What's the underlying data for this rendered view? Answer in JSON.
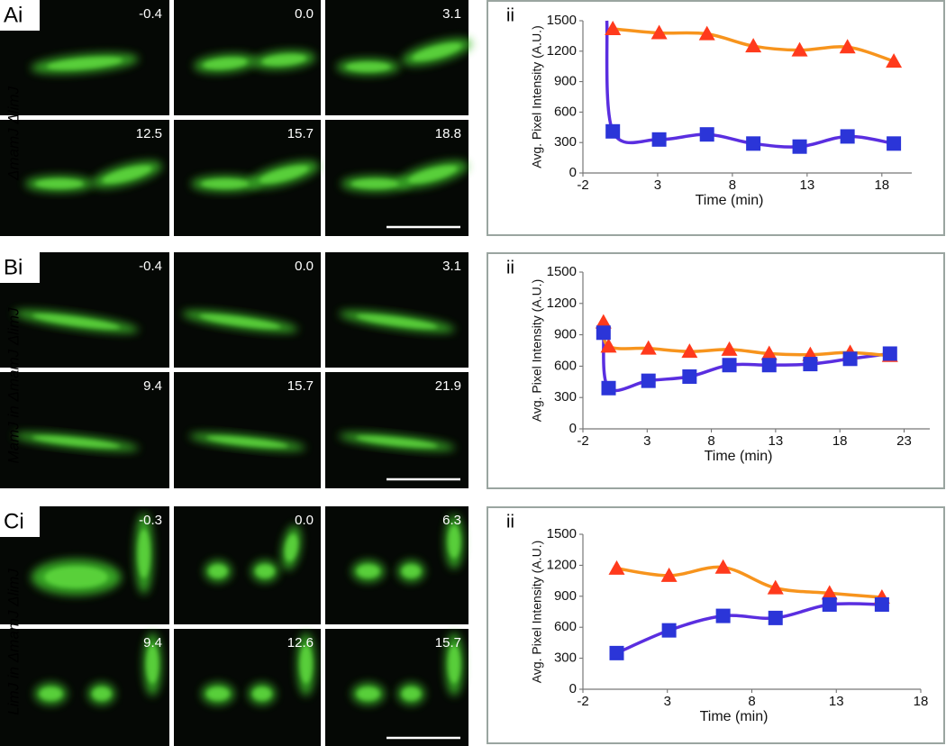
{
  "micrographs": [
    {
      "label": "Ai",
      "strain": "ΔmamJ ΔlimJ",
      "times": [
        "-0.4",
        "0.0",
        "3.1",
        "12.5",
        "15.7",
        "18.8"
      ]
    },
    {
      "label": "Bi",
      "strain": "MamJ in ΔmamJ ΔlimJ",
      "times": [
        "-0.4",
        "0.0",
        "3.1",
        "9.4",
        "15.7",
        "21.9"
      ]
    },
    {
      "label": "Ci",
      "strain": "LimJ in ΔmamJ ΔlimJ",
      "times": [
        "-0.3",
        "0.0",
        "6.3",
        "9.4",
        "12.6",
        "15.7"
      ]
    }
  ],
  "chart_data": [
    {
      "type": "line",
      "label": "ii",
      "x_label": "Time (min)",
      "y_label": "Avg. Pixel Intensity (A.U.)",
      "xlim": [
        -2,
        20
      ],
      "xticks": [
        -2,
        3,
        8,
        13,
        18
      ],
      "ylim": [
        0,
        1500
      ],
      "yticks": [
        0,
        300,
        600,
        900,
        1200,
        1500
      ],
      "series": [
        {
          "color": "#f7941d",
          "marker": "triangle",
          "marker_color": "#ff3a1c",
          "x": [
            0,
            3.1,
            6.3,
            9.4,
            12.5,
            15.7,
            18.8
          ],
          "values": [
            1420,
            1380,
            1370,
            1250,
            1210,
            1240,
            1100
          ]
        },
        {
          "color": "#5a2ee0",
          "marker": "square",
          "marker_color": "#2b35d8",
          "x": [
            -0.4,
            0,
            3.1,
            6.3,
            9.4,
            12.5,
            15.7,
            18.8
          ],
          "values": [
            1500,
            410,
            330,
            380,
            290,
            260,
            360,
            290
          ]
        }
      ]
    },
    {
      "type": "line",
      "label": "ii",
      "x_label": "Time (min)",
      "y_label": "Avg. Pixel Intensity (A.U.)",
      "xlim": [
        -2,
        25
      ],
      "xticks": [
        -2,
        3,
        8,
        13,
        18,
        23
      ],
      "ylim": [
        0,
        1500
      ],
      "yticks": [
        0,
        300,
        600,
        900,
        1200,
        1500
      ],
      "series": [
        {
          "color": "#f7941d",
          "marker": "triangle",
          "marker_color": "#ff3a1c",
          "x": [
            -0.4,
            0,
            3.1,
            6.3,
            9.4,
            12.5,
            15.7,
            18.8,
            21.9
          ],
          "values": [
            1020,
            790,
            770,
            740,
            760,
            720,
            710,
            730,
            700
          ]
        },
        {
          "color": "#5a2ee0",
          "marker": "square",
          "marker_color": "#2b35d8",
          "x": [
            -0.4,
            0,
            3.1,
            6.3,
            9.4,
            12.5,
            15.7,
            18.8,
            21.9
          ],
          "values": [
            920,
            390,
            460,
            500,
            610,
            610,
            620,
            670,
            720
          ]
        }
      ]
    },
    {
      "type": "line",
      "label": "ii",
      "x_label": "Time (min)",
      "y_label": "Avg. Pixel Intensity (A.U.)",
      "xlim": [
        -2,
        18
      ],
      "xticks": [
        -2,
        3,
        8,
        13,
        18
      ],
      "ylim": [
        0,
        1500
      ],
      "yticks": [
        0,
        300,
        600,
        900,
        1200,
        1500
      ],
      "series": [
        {
          "color": "#f7941d",
          "marker": "triangle",
          "marker_color": "#ff3a1c",
          "x": [
            0,
            3.1,
            6.3,
            9.4,
            12.6,
            15.7
          ],
          "values": [
            1170,
            1100,
            1180,
            980,
            930,
            890
          ]
        },
        {
          "color": "#5a2ee0",
          "marker": "square",
          "marker_color": "#2b35d8",
          "x": [
            0,
            3.1,
            6.3,
            9.4,
            12.6,
            15.7
          ],
          "values": [
            350,
            570,
            710,
            690,
            820,
            820
          ]
        }
      ]
    }
  ]
}
